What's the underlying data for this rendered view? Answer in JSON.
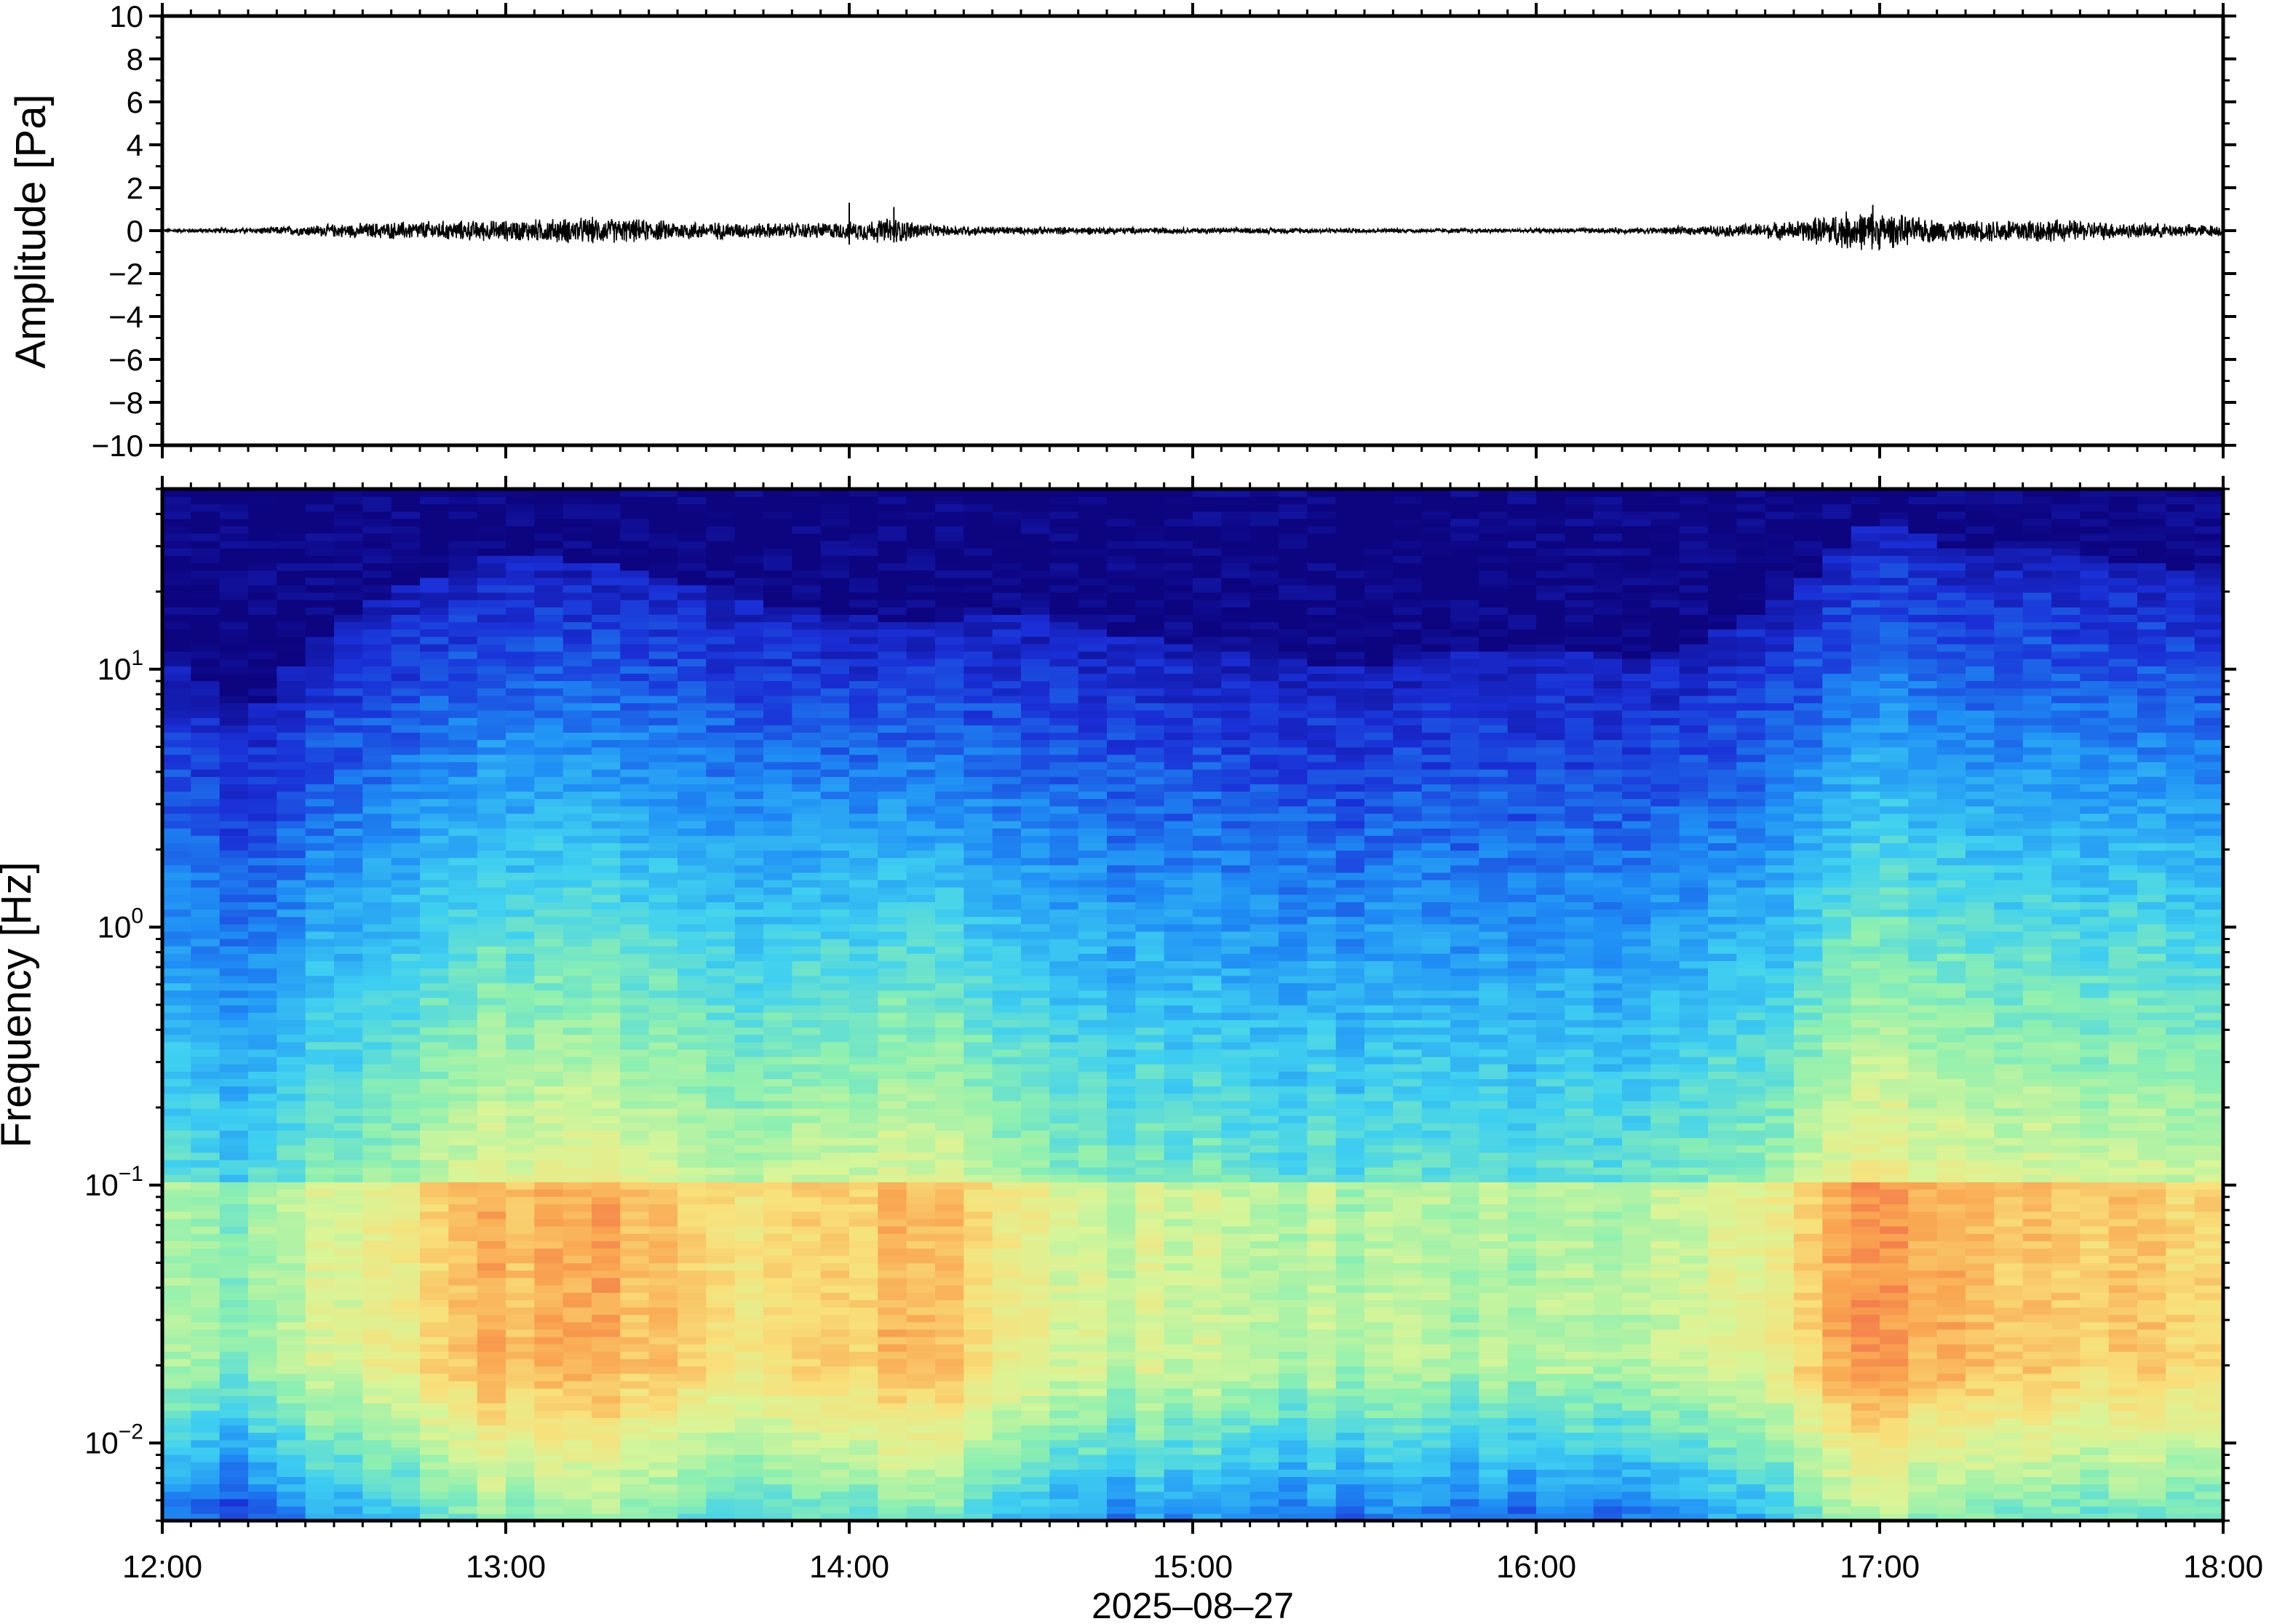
{
  "chart_data": [
    {
      "type": "line",
      "title": "",
      "xlabel": "",
      "ylabel": "Amplitude [Pa]",
      "ylim": [
        -10,
        10
      ],
      "yticks": [
        -10,
        -8,
        -6,
        -4,
        -2,
        0,
        2,
        4,
        6,
        8,
        10
      ],
      "ytick_labels": [
        "−10",
        "−8",
        "−6",
        "−4",
        "−2",
        "0",
        "2",
        "4",
        "6",
        "8",
        "10"
      ],
      "xlim": [
        "12:00",
        "18:00"
      ],
      "grid": false,
      "line_color": "#000000",
      "series": [
        {
          "x_hours": [
            12.0,
            12.25,
            12.5,
            12.75,
            13.0,
            13.25,
            13.5,
            13.75,
            14.0,
            14.125,
            14.25,
            14.5,
            14.75,
            15.0,
            15.25,
            15.5,
            15.75,
            16.0,
            16.25,
            16.5,
            16.75,
            16.9,
            17.0,
            17.1,
            17.25,
            17.4,
            17.5,
            17.75,
            18.0
          ],
          "envelope_pa": [
            0.1,
            0.15,
            0.35,
            0.5,
            0.55,
            0.7,
            0.5,
            0.4,
            0.45,
            0.7,
            0.3,
            0.2,
            0.2,
            0.15,
            0.15,
            0.12,
            0.12,
            0.12,
            0.15,
            0.25,
            0.5,
            1.0,
            1.0,
            0.7,
            0.5,
            0.7,
            0.6,
            0.4,
            0.3
          ],
          "spikes": [
            {
              "x_hours": 14.0,
              "y": 1.3
            },
            {
              "x_hours": 14.13,
              "y": 1.1
            },
            {
              "x_hours": 16.98,
              "y": 1.2
            }
          ]
        }
      ]
    },
    {
      "type": "heatmap",
      "title": "",
      "xlabel": "2025–08–27",
      "ylabel": "Frequency [Hz]",
      "yscale": "log",
      "ylim": [
        0.005,
        50
      ],
      "ytick_exponents": [
        -2,
        -1,
        0,
        1
      ],
      "ytick_base": "10",
      "xlim": [
        "12:00",
        "18:00"
      ],
      "xticks": [
        "12:00",
        "13:00",
        "14:00",
        "15:00",
        "16:00",
        "17:00",
        "18:00"
      ],
      "colormap": "jet",
      "colormap_stops": [
        "#0d0480",
        "#1a2fd6",
        "#1f8ef5",
        "#3fd0f0",
        "#8ef0b0",
        "#d8f598",
        "#f8e07a",
        "#f9a550",
        "#ee5a48"
      ],
      "time_hours": [
        12.0,
        12.25,
        12.5,
        12.75,
        13.0,
        13.25,
        13.5,
        13.75,
        14.0,
        14.25,
        14.5,
        14.75,
        15.0,
        15.25,
        15.5,
        15.75,
        16.0,
        16.25,
        16.5,
        16.75,
        17.0,
        17.25,
        17.5,
        17.75,
        18.0
      ],
      "noise_ceiling_hz": [
        12,
        6,
        15,
        22,
        28,
        26,
        22,
        18,
        16,
        15,
        17,
        14,
        12,
        11,
        10,
        12,
        12,
        11,
        13,
        20,
        40,
        28,
        30,
        26,
        24
      ],
      "peak_band_hz": [
        0.02,
        0.1
      ],
      "peak_intensity": [
        0.55,
        0.5,
        0.65,
        0.75,
        0.85,
        0.85,
        0.8,
        0.75,
        0.8,
        0.82,
        0.7,
        0.6,
        0.62,
        0.58,
        0.55,
        0.55,
        0.55,
        0.55,
        0.6,
        0.7,
        0.95,
        0.8,
        0.82,
        0.8,
        0.75
      ]
    }
  ]
}
